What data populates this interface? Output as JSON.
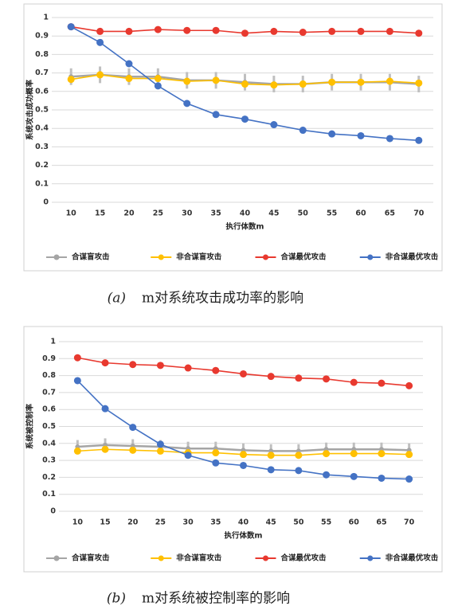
{
  "chart_data": [
    {
      "type": "line",
      "caption_label": "(a)",
      "caption": "m对系统攻击成功率的影响",
      "x_label": "执行体数m",
      "y_label": "系统攻击成功概率",
      "categories": [
        10,
        15,
        20,
        25,
        30,
        35,
        40,
        45,
        50,
        55,
        60,
        65,
        70
      ],
      "ylim": [
        0,
        1
      ],
      "yticks": [
        0,
        0.1,
        0.2,
        0.3,
        0.4,
        0.5,
        0.6,
        0.7,
        0.8,
        0.9,
        1
      ],
      "grid": true,
      "legend": "bottom",
      "series": [
        {
          "name": "合谋盲攻击",
          "color": "#a5a5a5",
          "values": [
            0.68,
            0.69,
            0.68,
            0.68,
            0.66,
            0.66,
            0.65,
            0.64,
            0.64,
            0.65,
            0.65,
            0.65,
            0.64
          ],
          "errors": [
            0.045,
            0.045,
            0.045,
            0.045,
            0.045,
            0.045,
            0.045,
            0.045,
            0.045,
            0.045,
            0.045,
            0.045,
            0.045
          ]
        },
        {
          "name": "非合谋盲攻击",
          "color": "#ffc000",
          "values": [
            0.665,
            0.69,
            0.67,
            0.67,
            0.655,
            0.66,
            0.64,
            0.635,
            0.64,
            0.65,
            0.65,
            0.655,
            0.645
          ]
        },
        {
          "name": "合谋最优攻击",
          "color": "#e8392f",
          "values": [
            0.95,
            0.925,
            0.925,
            0.935,
            0.93,
            0.93,
            0.915,
            0.925,
            0.92,
            0.925,
            0.925,
            0.925,
            0.915
          ]
        },
        {
          "name": "非合谋最优攻击",
          "color": "#4472c4",
          "values": [
            0.95,
            0.865,
            0.75,
            0.63,
            0.535,
            0.475,
            0.45,
            0.42,
            0.39,
            0.37,
            0.36,
            0.345,
            0.335
          ]
        }
      ]
    },
    {
      "type": "line",
      "caption_label": "(b)",
      "caption": "m对系统被控制率的影响",
      "x_label": "执行体数m",
      "y_label": "系统被控制率",
      "categories": [
        10,
        15,
        20,
        25,
        30,
        35,
        40,
        45,
        50,
        55,
        60,
        65,
        70
      ],
      "ylim": [
        0,
        1
      ],
      "yticks": [
        0,
        0.1,
        0.2,
        0.3,
        0.4,
        0.5,
        0.6,
        0.7,
        0.8,
        0.9,
        1
      ],
      "grid": true,
      "legend": "bottom",
      "series": [
        {
          "name": "合谋盲攻击",
          "color": "#a5a5a5",
          "values": [
            0.38,
            0.39,
            0.385,
            0.38,
            0.37,
            0.37,
            0.36,
            0.355,
            0.355,
            0.365,
            0.365,
            0.365,
            0.36
          ],
          "errors": [
            0.04,
            0.04,
            0.04,
            0.04,
            0.04,
            0.04,
            0.04,
            0.04,
            0.04,
            0.04,
            0.04,
            0.04,
            0.04
          ]
        },
        {
          "name": "非合谋盲攻击",
          "color": "#ffc000",
          "values": [
            0.355,
            0.365,
            0.36,
            0.355,
            0.345,
            0.345,
            0.335,
            0.33,
            0.33,
            0.34,
            0.34,
            0.34,
            0.335
          ]
        },
        {
          "name": "合谋最优攻击",
          "color": "#e8392f",
          "values": [
            0.905,
            0.875,
            0.865,
            0.86,
            0.845,
            0.83,
            0.81,
            0.795,
            0.785,
            0.78,
            0.76,
            0.755,
            0.74
          ]
        },
        {
          "name": "非合谋最优攻击",
          "color": "#4472c4",
          "values": [
            0.77,
            0.605,
            0.495,
            0.395,
            0.33,
            0.285,
            0.27,
            0.245,
            0.24,
            0.215,
            0.205,
            0.195,
            0.19
          ]
        }
      ]
    }
  ]
}
